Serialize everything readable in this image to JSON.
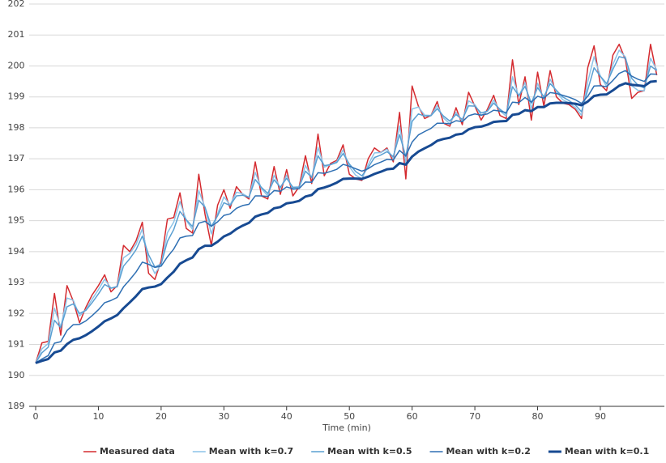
{
  "chart_data": {
    "type": "line",
    "x_label": "Time (min)",
    "x": [
      0,
      1,
      2,
      3,
      4,
      5,
      6,
      7,
      8,
      9,
      10,
      11,
      12,
      13,
      14,
      15,
      16,
      17,
      18,
      19,
      20,
      21,
      22,
      23,
      24,
      25,
      26,
      27,
      28,
      29,
      30,
      31,
      32,
      33,
      34,
      35,
      36,
      37,
      38,
      39,
      40,
      41,
      42,
      43,
      44,
      45,
      46,
      47,
      48,
      49,
      50,
      51,
      52,
      53,
      54,
      55,
      56,
      57,
      58,
      59,
      60,
      61,
      62,
      63,
      64,
      65,
      66,
      67,
      68,
      69,
      70,
      71,
      72,
      73,
      74,
      75,
      76,
      77,
      78,
      79,
      80,
      81,
      82,
      83,
      84,
      85,
      86,
      87,
      88,
      89,
      90,
      91,
      92,
      93,
      94,
      95,
      96,
      97,
      98,
      99
    ],
    "xlim": [
      0,
      100
    ],
    "xticks": [
      0,
      10,
      20,
      30,
      40,
      50,
      60,
      70,
      80,
      90
    ],
    "ylim": [
      189,
      202
    ],
    "yticks": [
      189,
      190,
      191,
      192,
      193,
      194,
      195,
      196,
      197,
      198,
      199,
      200,
      201,
      202
    ],
    "grid": true,
    "series": [
      {
        "name": "Measured data",
        "color": "#d42a2f",
        "width": 1.5,
        "values": [
          190.4,
          191.05,
          191.1,
          192.65,
          191.3,
          192.9,
          192.4,
          191.7,
          192.2,
          192.6,
          192.9,
          193.25,
          192.7,
          192.9,
          194.2,
          194.0,
          194.35,
          194.95,
          193.3,
          193.1,
          193.7,
          195.05,
          195.1,
          195.9,
          194.75,
          194.6,
          196.5,
          195.2,
          194.2,
          195.5,
          196.0,
          195.4,
          196.1,
          195.85,
          195.7,
          196.9,
          195.8,
          195.7,
          196.75,
          195.85,
          196.65,
          195.8,
          196.1,
          197.1,
          196.2,
          197.8,
          196.45,
          196.85,
          196.95,
          197.45,
          196.5,
          196.35,
          196.3,
          197.0,
          197.35,
          197.2,
          197.35,
          196.9,
          198.5,
          196.35,
          199.35,
          198.7,
          198.3,
          198.4,
          198.85,
          198.15,
          198.05,
          198.65,
          198.1,
          199.15,
          198.7,
          198.25,
          198.6,
          199.05,
          198.4,
          198.3,
          200.2,
          198.75,
          199.65,
          198.25,
          199.8,
          198.7,
          199.85,
          199.0,
          198.8,
          198.75,
          198.6,
          198.3,
          199.95,
          200.65,
          199.4,
          199.2,
          200.35,
          200.7,
          200.2,
          198.95,
          199.15,
          199.2,
          200.7,
          199.7
        ]
      },
      {
        "name": "Mean with k=0.7",
        "color": "#8cc3e8",
        "width": 1.5,
        "values": [
          190.4,
          190.86,
          191.03,
          192.17,
          191.56,
          192.5,
          192.43,
          191.92,
          192.12,
          192.46,
          192.77,
          193.11,
          192.82,
          192.88,
          193.8,
          193.94,
          194.23,
          194.73,
          193.73,
          193.29,
          193.58,
          194.61,
          194.95,
          195.62,
          195.01,
          194.72,
          195.97,
          195.43,
          194.57,
          195.22,
          195.77,
          195.51,
          195.92,
          195.87,
          195.75,
          196.56,
          196.03,
          195.8,
          196.47,
          196.04,
          196.47,
          196.0,
          196.07,
          196.79,
          196.38,
          197.37,
          196.73,
          196.81,
          196.91,
          197.29,
          196.74,
          196.47,
          196.35,
          196.81,
          197.19,
          197.2,
          197.31,
          197.02,
          198.06,
          196.87,
          198.61,
          198.67,
          198.41,
          198.4,
          198.72,
          198.32,
          198.13,
          198.5,
          198.22,
          198.87,
          198.75,
          198.4,
          198.54,
          198.9,
          198.55,
          198.38,
          199.65,
          199.02,
          199.46,
          198.61,
          199.44,
          198.92,
          199.57,
          199.17,
          198.91,
          198.8,
          198.66,
          198.41,
          199.49,
          200.3,
          199.67,
          199.34,
          200.05,
          200.51,
          200.29,
          199.36,
          199.21,
          199.2,
          200.25,
          199.87
        ]
      },
      {
        "name": "Mean with k=0.5",
        "color": "#5a9fd2",
        "width": 1.5,
        "values": [
          190.4,
          190.73,
          190.91,
          191.78,
          191.54,
          192.22,
          192.31,
          192.0,
          192.1,
          192.35,
          192.63,
          192.94,
          192.82,
          192.86,
          193.53,
          193.77,
          194.06,
          194.5,
          193.9,
          193.5,
          193.6,
          194.33,
          194.71,
          195.3,
          195.03,
          194.81,
          195.66,
          195.43,
          194.81,
          195.16,
          195.58,
          195.49,
          195.8,
          195.82,
          195.76,
          196.33,
          196.07,
          195.88,
          196.32,
          196.08,
          196.37,
          196.08,
          196.09,
          196.6,
          196.4,
          197.1,
          196.78,
          196.81,
          196.88,
          197.17,
          196.83,
          196.59,
          196.45,
          196.72,
          197.04,
          197.12,
          197.23,
          197.07,
          197.78,
          197.07,
          198.21,
          198.45,
          198.38,
          198.39,
          198.62,
          198.38,
          198.22,
          198.43,
          198.27,
          198.71,
          198.7,
          198.48,
          198.54,
          198.8,
          198.6,
          198.45,
          199.33,
          199.04,
          199.34,
          198.8,
          199.3,
          199.0,
          199.43,
          199.21,
          199.0,
          198.88,
          198.74,
          198.52,
          199.23,
          199.94,
          199.67,
          199.43,
          199.89,
          200.3,
          200.25,
          199.6,
          199.38,
          199.29,
          200.0,
          199.85
        ]
      },
      {
        "name": "Mean with k=0.2",
        "color": "#2e6fb3",
        "width": 1.5,
        "values": [
          190.4,
          190.53,
          190.64,
          191.04,
          191.09,
          191.45,
          191.64,
          191.65,
          191.76,
          191.93,
          192.12,
          192.35,
          192.42,
          192.52,
          192.86,
          193.09,
          193.34,
          193.66,
          193.59,
          193.49,
          193.53,
          193.83,
          194.08,
          194.44,
          194.5,
          194.52,
          194.92,
          194.98,
          194.82,
          194.96,
          195.17,
          195.22,
          195.4,
          195.49,
          195.53,
          195.8,
          195.8,
          195.78,
          195.97,
          195.95,
          196.09,
          196.03,
          196.04,
          196.25,
          196.24,
          196.55,
          196.53,
          196.59,
          196.66,
          196.82,
          196.76,
          196.68,
          196.6,
          196.68,
          196.81,
          196.89,
          196.98,
          196.96,
          197.27,
          197.09,
          197.54,
          197.77,
          197.88,
          197.98,
          198.15,
          198.15,
          198.13,
          198.23,
          198.2,
          198.39,
          198.45,
          198.41,
          198.45,
          198.57,
          198.54,
          198.49,
          198.83,
          198.81,
          198.98,
          198.83,
          199.02,
          198.96,
          199.14,
          199.11,
          199.05,
          198.99,
          198.91,
          198.79,
          199.02,
          199.35,
          199.36,
          199.33,
          199.53,
          199.76,
          199.85,
          199.67,
          199.57,
          199.5,
          199.74,
          199.73
        ]
      },
      {
        "name": "Mean with k=0.1",
        "color": "#174a92",
        "width": 3,
        "values": [
          190.4,
          190.47,
          190.53,
          190.74,
          190.8,
          191.01,
          191.15,
          191.2,
          191.3,
          191.43,
          191.58,
          191.75,
          191.84,
          191.95,
          192.17,
          192.36,
          192.56,
          192.79,
          192.84,
          192.87,
          192.95,
          193.16,
          193.35,
          193.61,
          193.72,
          193.81,
          194.08,
          194.19,
          194.19,
          194.32,
          194.49,
          194.58,
          194.73,
          194.84,
          194.93,
          195.13,
          195.2,
          195.25,
          195.4,
          195.44,
          195.56,
          195.59,
          195.64,
          195.78,
          195.83,
          196.02,
          196.07,
          196.14,
          196.23,
          196.35,
          196.36,
          196.36,
          196.35,
          196.42,
          196.51,
          196.58,
          196.66,
          196.68,
          196.86,
          196.81,
          197.07,
          197.23,
          197.34,
          197.44,
          197.58,
          197.64,
          197.68,
          197.78,
          197.81,
          197.95,
          198.02,
          198.04,
          198.1,
          198.19,
          198.21,
          198.22,
          198.42,
          198.45,
          198.57,
          198.54,
          198.67,
          198.67,
          198.79,
          198.81,
          198.81,
          198.8,
          198.78,
          198.73,
          198.85,
          199.03,
          199.07,
          199.08,
          199.21,
          199.36,
          199.44,
          199.39,
          199.37,
          199.35,
          199.49,
          199.51
        ]
      }
    ]
  }
}
